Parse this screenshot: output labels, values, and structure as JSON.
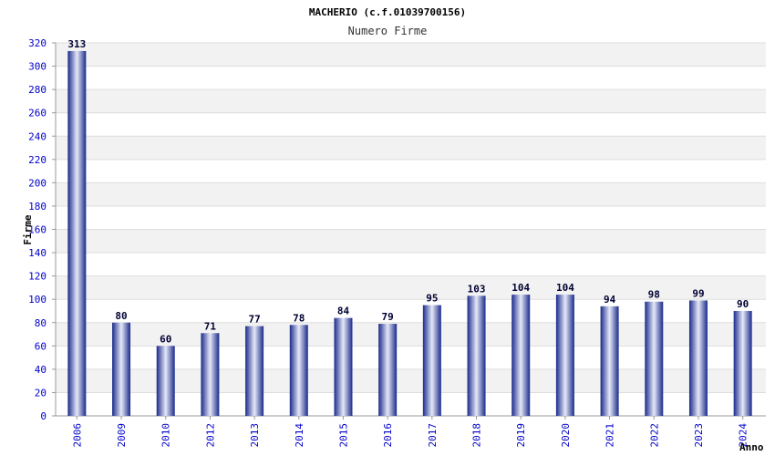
{
  "colors": {
    "bar_dark": "#1a2a8a",
    "bar_light": "#e6e9f8",
    "band": "#f2f2f2",
    "tick_text": "#0000cc",
    "label_text": "#000033"
  },
  "chart_data": {
    "type": "bar",
    "title": "MACHERIO (c.f.01039700156)",
    "subtitle": "Numero Firme",
    "xlabel": "Anno",
    "ylabel": "Firme",
    "ylim": [
      0,
      320
    ],
    "ytick_step": 20,
    "grid": true,
    "categories": [
      "2006",
      "2009",
      "2010",
      "2012",
      "2013",
      "2014",
      "2015",
      "2016",
      "2017",
      "2018",
      "2019",
      "2020",
      "2021",
      "2022",
      "2023",
      "2024"
    ],
    "values": [
      313,
      80,
      60,
      71,
      77,
      78,
      84,
      79,
      95,
      103,
      104,
      104,
      94,
      98,
      99,
      90
    ]
  }
}
